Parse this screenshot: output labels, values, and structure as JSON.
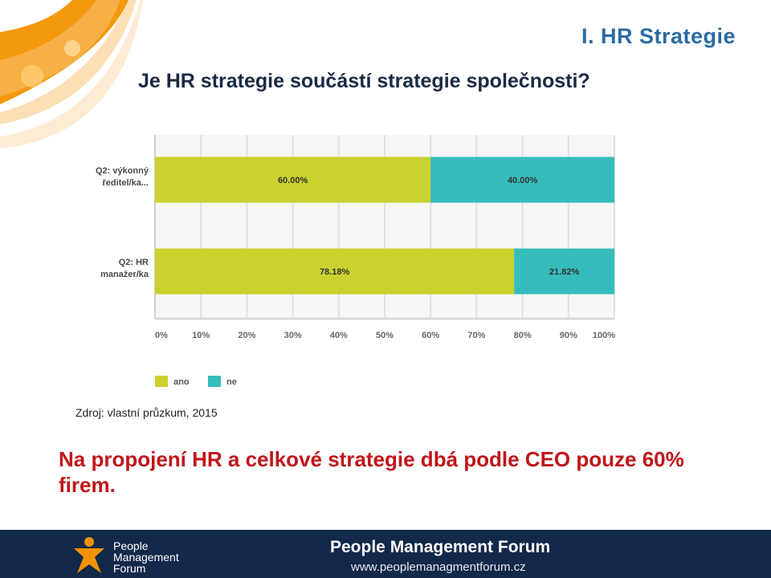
{
  "header": {
    "section_title": "I. HR Strategie",
    "question": "Je HR strategie součástí strategie společnosti?"
  },
  "chart_data": {
    "type": "bar",
    "orientation": "horizontal",
    "stacked": true,
    "categories": [
      "Q2: výkonný ředitel/ka...",
      "Q2: HR manažer/ka"
    ],
    "category_lines": [
      [
        "Q2: výkonný",
        "ředitel/ka..."
      ],
      [
        "Q2: HR",
        "manažer/ka"
      ]
    ],
    "series": [
      {
        "name": "ano",
        "values": [
          60.0,
          78.18
        ],
        "labels": [
          "60.00%",
          "78.18%"
        ],
        "color": "#c9d22e"
      },
      {
        "name": "ne",
        "values": [
          40.0,
          21.82
        ],
        "labels": [
          "40.00%",
          "21.82%"
        ],
        "color": "#36bcbb"
      }
    ],
    "xlim": [
      0,
      100
    ],
    "x_ticks": [
      "0%",
      "10%",
      "20%",
      "30%",
      "40%",
      "50%",
      "60%",
      "70%",
      "80%",
      "90%",
      "100%"
    ],
    "grid": true,
    "legend_position": "bottom-left"
  },
  "source_note": "Zdroj: vlastní průzkum, 2015",
  "conclusion": "Na propojení HR a celkové strategie dbá podle CEO pouze 60% firem.",
  "footer": {
    "brand_lines": [
      "People",
      "Management",
      "Forum"
    ],
    "name": "People Management Forum",
    "url": "www.peoplemanagmentforum.cz",
    "background": "#12294a",
    "accent": "#f39200"
  },
  "icons": {
    "swirl": "orange-swirl-decoration",
    "logo": "person-star-logo-icon"
  }
}
